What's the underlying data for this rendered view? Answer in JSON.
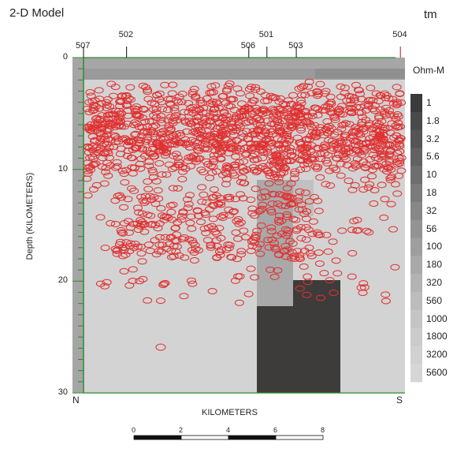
{
  "title": "2-D Model",
  "corner_label": "tm",
  "x_axis_title": "KILOMETERS",
  "y_axis_title": "Depth (KILOMETERS)",
  "depth_ticks": [
    "0",
    "10",
    "20",
    "30"
  ],
  "directions": {
    "left": "N",
    "right": "S"
  },
  "sites": [
    {
      "label": "507",
      "km": 0.0
    },
    {
      "label": "502",
      "km": 1.9
    },
    {
      "label": "506",
      "km": 7.3
    },
    {
      "label": "501",
      "km": 8.1
    },
    {
      "label": "503",
      "km": 9.4
    },
    {
      "label": "504",
      "km": 14.0
    }
  ],
  "colorbar": {
    "units": "Ohm-M",
    "labels": [
      "1",
      "1.8",
      "3.2",
      "5.6",
      "10",
      "18",
      "32",
      "56",
      "100",
      "180",
      "320",
      "560",
      "1000",
      "1800",
      "3200",
      "5600"
    ],
    "colors": [
      "#3b3b3b",
      "#4a4a4a",
      "#555555",
      "#626262",
      "#6e6e6e",
      "#7b7b7b",
      "#878787",
      "#939393",
      "#9e9e9e",
      "#a9a9a9",
      "#b3b3b3",
      "#bcbcbc",
      "#c4c4c4",
      "#cbcbcb",
      "#d1d1d1",
      "#d6d6d6"
    ]
  },
  "scale_bar": {
    "labels": [
      "0",
      "2",
      "4",
      "6",
      "8"
    ]
  },
  "colors": {
    "background_model": "#d3d3d3",
    "dark_block": "#3e3c3a",
    "mid_block": "#a9a9a9",
    "upper_grey": "#9a9a9a",
    "earthquake": "#e03030",
    "axis_green": "#2e8b2e"
  }
}
